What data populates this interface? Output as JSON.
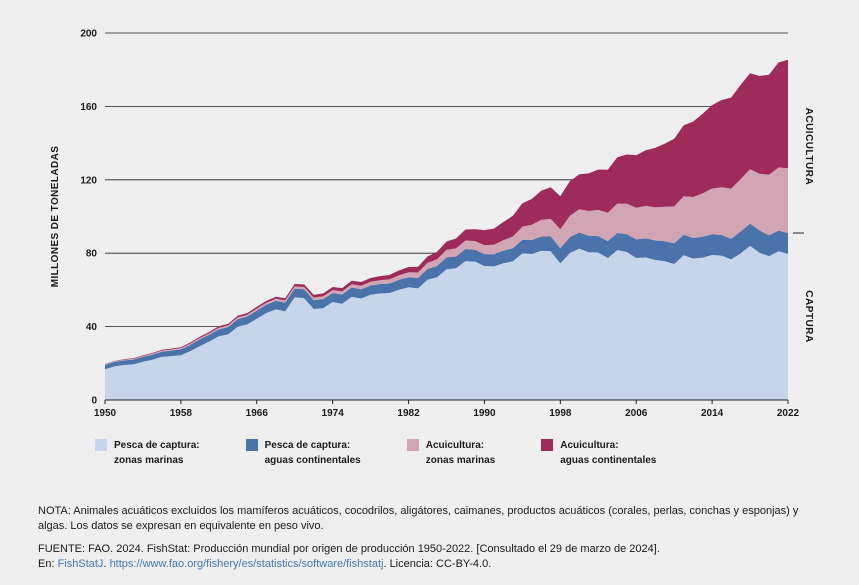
{
  "chart": {
    "ylabel": "MILLONES DE TONELADAS",
    "y_ticks": [
      0,
      40,
      80,
      120,
      160,
      200
    ],
    "x_ticks": [
      1950,
      1958,
      1966,
      1974,
      1982,
      1990,
      1998,
      2006,
      2014,
      2022
    ],
    "right_labels": {
      "top": "ACUICULTURA",
      "bottom": "CAPTURA"
    },
    "grid_color": "#231f20",
    "text_color": "#1a1a1a"
  },
  "chart_data": {
    "type": "area",
    "stacked": true,
    "title": "",
    "xlabel": "",
    "ylabel": "MILLONES DE TONELADAS",
    "ylim": [
      0,
      200
    ],
    "xlim": [
      1950,
      2022
    ],
    "legend_position": "bottom",
    "grid": "horizontal",
    "x": [
      1950,
      1951,
      1952,
      1953,
      1954,
      1955,
      1956,
      1957,
      1958,
      1959,
      1960,
      1961,
      1962,
      1963,
      1964,
      1965,
      1966,
      1967,
      1968,
      1969,
      1970,
      1971,
      1972,
      1973,
      1974,
      1975,
      1976,
      1977,
      1978,
      1979,
      1980,
      1981,
      1982,
      1983,
      1984,
      1985,
      1986,
      1987,
      1988,
      1989,
      1990,
      1991,
      1992,
      1993,
      1994,
      1995,
      1996,
      1997,
      1998,
      1999,
      2000,
      2001,
      2002,
      2003,
      2004,
      2005,
      2006,
      2007,
      2008,
      2009,
      2010,
      2011,
      2012,
      2013,
      2014,
      2015,
      2016,
      2017,
      2018,
      2019,
      2020,
      2021,
      2022
    ],
    "series": [
      {
        "name": "Pesca de captura: zonas marinas",
        "color": "#c6d5ea",
        "values": [
          16.8,
          18.3,
          19.1,
          19.4,
          20.8,
          21.9,
          23.5,
          23.9,
          24.4,
          26.7,
          29.4,
          31.9,
          34.7,
          35.8,
          40.0,
          41.2,
          44.3,
          47.4,
          49.4,
          48.4,
          56.0,
          55.5,
          49.6,
          50.1,
          53.4,
          52.5,
          56.2,
          55.3,
          57.4,
          58.1,
          58.3,
          60.1,
          61.4,
          60.8,
          65.5,
          66.9,
          71.3,
          71.8,
          75.7,
          75.4,
          73.0,
          72.8,
          74.5,
          75.6,
          79.9,
          79.6,
          81.3,
          81.1,
          74.4,
          80.1,
          82.5,
          80.5,
          80.4,
          77.4,
          81.7,
          80.7,
          77.4,
          77.7,
          76.3,
          75.7,
          74.1,
          78.9,
          77.1,
          77.6,
          79.0,
          78.7,
          76.6,
          79.9,
          84.0,
          80.3,
          78.3,
          81.1,
          79.7
        ]
      },
      {
        "name": "Pesca de captura: aguas continentales",
        "color": "#4a72ab",
        "values": [
          2.3,
          2.4,
          2.5,
          2.6,
          2.7,
          2.8,
          2.9,
          3.0,
          3.2,
          3.4,
          3.6,
          3.7,
          3.8,
          4.0,
          4.1,
          4.3,
          4.4,
          4.5,
          4.6,
          4.7,
          4.7,
          4.8,
          4.8,
          4.9,
          4.9,
          5.0,
          5.1,
          5.1,
          5.0,
          5.1,
          5.2,
          5.4,
          5.5,
          5.7,
          5.9,
          6.1,
          6.4,
          6.4,
          6.6,
          6.5,
          6.5,
          6.6,
          6.9,
          7.1,
          7.4,
          7.6,
          7.8,
          8.0,
          8.3,
          8.6,
          8.8,
          9.0,
          8.9,
          9.2,
          9.3,
          9.7,
          10.1,
          10.4,
          10.6,
          10.8,
          11.3,
          11.1,
          11.2,
          11.4,
          11.3,
          11.2,
          11.3,
          11.9,
          12.0,
          12.1,
          11.4,
          11.2,
          11.3
        ]
      },
      {
        "name": "Acuicultura: zonas marinas",
        "color": "#d2a5b5",
        "values": [
          0.3,
          0.3,
          0.4,
          0.4,
          0.5,
          0.5,
          0.6,
          0.6,
          0.7,
          0.7,
          0.8,
          0.8,
          0.9,
          0.9,
          1.0,
          1.0,
          1.1,
          1.1,
          1.2,
          1.2,
          1.2,
          1.3,
          1.4,
          1.5,
          1.6,
          1.7,
          1.8,
          1.9,
          2.0,
          2.1,
          2.3,
          2.5,
          2.7,
          3.0,
          3.3,
          3.7,
          4.1,
          4.4,
          4.6,
          4.7,
          4.9,
          5.2,
          5.7,
          6.4,
          7.2,
          8.3,
          9.1,
          9.6,
          10.3,
          11.6,
          12.6,
          13.5,
          14.3,
          15.4,
          16.1,
          16.6,
          17.3,
          17.7,
          18.1,
          18.8,
          20.1,
          21.0,
          22.3,
          23.6,
          24.9,
          26.0,
          27.3,
          28.6,
          29.8,
          30.9,
          33.1,
          34.4,
          35.3
        ]
      },
      {
        "name": "Acuicultura: aguas continentales",
        "color": "#9e2b5a",
        "values": [
          0.2,
          0.2,
          0.3,
          0.3,
          0.3,
          0.4,
          0.4,
          0.5,
          0.5,
          0.6,
          0.7,
          0.7,
          0.8,
          0.8,
          0.9,
          0.9,
          1.0,
          1.0,
          1.1,
          1.1,
          1.3,
          1.4,
          1.5,
          1.6,
          1.7,
          1.8,
          1.9,
          2.0,
          2.1,
          2.2,
          2.4,
          2.6,
          2.9,
          3.1,
          3.5,
          4.0,
          4.6,
          5.4,
          6.0,
          6.5,
          8.2,
          8.8,
          9.9,
          11.3,
          12.7,
          14.1,
          15.9,
          17.2,
          18.0,
          18.9,
          19.1,
          20.5,
          22.0,
          23.5,
          25.2,
          26.8,
          28.6,
          30.3,
          32.4,
          34.3,
          36.9,
          38.7,
          41.1,
          43.4,
          45.5,
          47.6,
          49.6,
          51.3,
          52.3,
          53.3,
          54.4,
          57.2,
          59.1
        ]
      }
    ]
  },
  "legend": {
    "items": [
      {
        "line1": "Pesca de captura:",
        "line2": "zonas marinas",
        "color": "#c6d5ea"
      },
      {
        "line1": "Pesca de captura:",
        "line2": "aguas continentales",
        "color": "#4a72ab"
      },
      {
        "line1": "Acuicultura:",
        "line2": "zonas marinas",
        "color": "#d2a5b5"
      },
      {
        "line1": "Acuicultura:",
        "line2": "aguas continentales",
        "color": "#9e2b5a"
      }
    ]
  },
  "notes": {
    "nota": "NOTA: Animales acuáticos excluidos los mamíferos acuáticos, cocodrilos, aligátores, caimanes, productos acuáticos (corales, perlas, conchas y esponjas) y algas. Los datos se expresan en equivalente en peso vivo.",
    "fuente": "FUENTE: FAO. 2024. FishStat: Producción mundial por origen de producción 1950-2022. [Consultado el 29 de marzo de 2024].",
    "en_prefix": "En: ",
    "link1": "FishStatJ",
    "sep": ". ",
    "link2": "https://www.fao.org/fishery/es/statistics/software/fishstatj",
    "suffix": ". Licencia: CC-BY-4.0.",
    "link_color": "#4379b2"
  }
}
